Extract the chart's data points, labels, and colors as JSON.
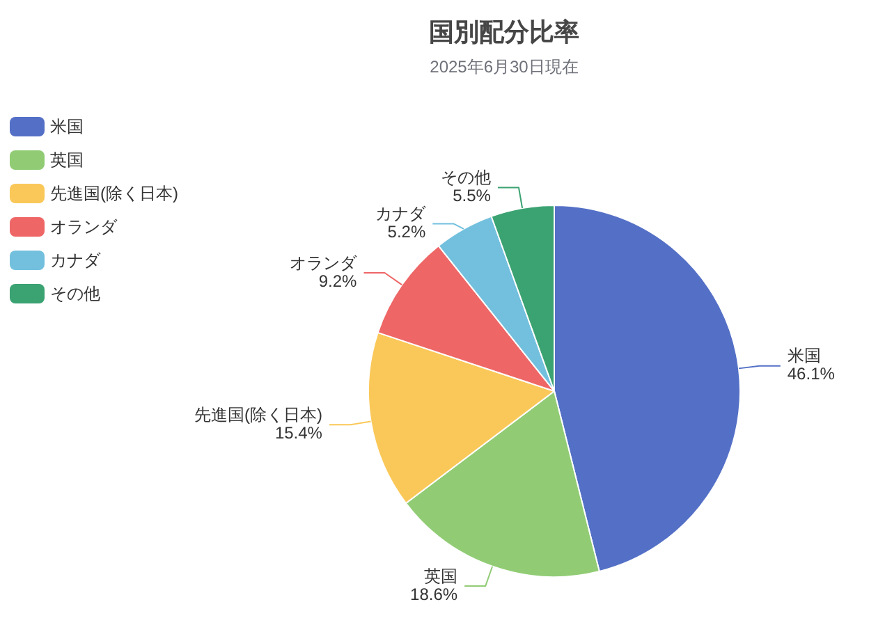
{
  "chart_data": {
    "type": "pie",
    "title": "国別配分比率",
    "subtitle": "2025年6月30日現在",
    "categories": [
      "米国",
      "英国",
      "先進国(除く日本)",
      "オランダ",
      "カナダ",
      "その他"
    ],
    "values": [
      46.1,
      18.6,
      15.4,
      9.2,
      5.2,
      5.5
    ],
    "colors": [
      "#5470c6",
      "#91cc75",
      "#fac858",
      "#ee6666",
      "#73c0de",
      "#3ba272"
    ],
    "value_labels": [
      "46.1%",
      "18.6%",
      "15.4%",
      "9.2%",
      "5.2%",
      "5.5%"
    ],
    "legend": "left"
  }
}
